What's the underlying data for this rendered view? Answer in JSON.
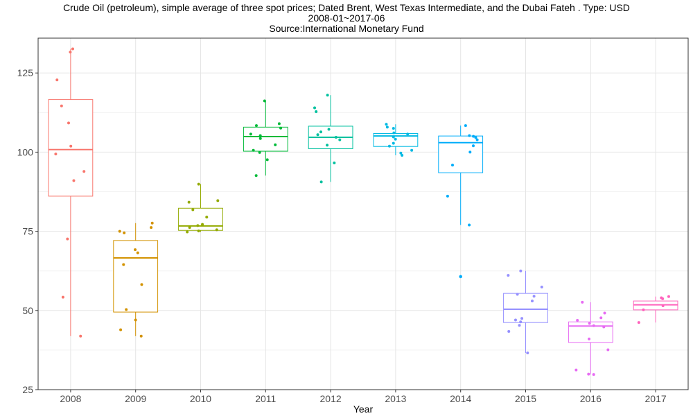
{
  "chart_data": {
    "type": "box",
    "title": "Crude Oil (petroleum), simple average of three spot prices; Dated Brent, West Texas Intermediate, and the Dubai Fateh . Type: USD",
    "subtitle": "2008-01~2017-06",
    "source": "Source:International Monetary Fund",
    "xlabel": "Year",
    "ylabel": "",
    "ylim": [
      25,
      136
    ],
    "yticks": [
      25,
      50,
      75,
      100,
      125
    ],
    "grid": true,
    "legend": "none",
    "categories": [
      "2008",
      "2009",
      "2010",
      "2011",
      "2012",
      "2013",
      "2014",
      "2015",
      "2016",
      "2017"
    ],
    "boxes": [
      {
        "year": "2008",
        "color": "#F8766D",
        "whisker_low": 41.9,
        "q1": 86.1,
        "median": 100.8,
        "q3": 116.6,
        "whisker_high": 132.6,
        "points": [
          131.6,
          132.6,
          122.8,
          114.6,
          109.2,
          101.9,
          99.4,
          93.9,
          91.0,
          72.6,
          54.2,
          41.9
        ],
        "outliers": []
      },
      {
        "year": "2009",
        "color": "#D39200",
        "whisker_low": 41.9,
        "q1": 49.5,
        "median": 66.6,
        "q3": 72.1,
        "whisker_high": 77.6,
        "points": [
          41.9,
          43.9,
          47.0,
          50.3,
          58.2,
          64.5,
          68.2,
          69.2,
          74.5,
          75.0,
          76.2,
          77.6
        ],
        "outliers": []
      },
      {
        "year": "2010",
        "color": "#93AA00",
        "whisker_low": 74.8,
        "q1": 75.3,
        "median": 76.7,
        "q3": 82.3,
        "whisker_high": 89.9,
        "points": [
          74.8,
          75.1,
          75.5,
          76.2,
          76.8,
          77.2,
          79.5,
          81.8,
          84.2,
          84.7,
          89.9
        ],
        "outliers": []
      },
      {
        "year": "2011",
        "color": "#00BA38",
        "whisker_low": 92.6,
        "q1": 100.3,
        "median": 104.9,
        "q3": 107.9,
        "whisker_high": 116.2,
        "points": [
          92.6,
          97.6,
          99.9,
          100.6,
          102.3,
          104.3,
          105.2,
          105.7,
          107.6,
          108.4,
          109.0,
          116.2
        ],
        "outliers": []
      },
      {
        "year": "2012",
        "color": "#00C19F",
        "whisker_low": 90.6,
        "q1": 101.1,
        "median": 104.7,
        "q3": 108.2,
        "whisker_high": 118.0,
        "points": [
          90.6,
          96.6,
          102.2,
          103.9,
          104.7,
          105.5,
          106.4,
          107.2,
          112.8,
          114.0,
          118.0
        ],
        "outliers": []
      },
      {
        "year": "2013",
        "color": "#00B9E3",
        "whisker_low": 99.0,
        "q1": 101.8,
        "median": 105.1,
        "q3": 105.9,
        "whisker_high": 108.8,
        "points": [
          99.0,
          99.7,
          100.6,
          101.9,
          102.8,
          104.1,
          104.8,
          105.7,
          106.1,
          107.5,
          107.9,
          108.8
        ],
        "outliers": []
      },
      {
        "year": "2014",
        "color": "#00ADFA",
        "whisker_low": 77.0,
        "q1": 93.5,
        "median": 103.0,
        "q3": 105.1,
        "whisker_high": 108.4,
        "points": [
          77.0,
          86.1,
          95.9,
          100.0,
          102.0,
          103.9,
          104.6,
          105.0,
          105.2,
          108.4
        ],
        "outliers": [
          60.7,
          60.7
        ]
      },
      {
        "year": "2015",
        "color": "#9590FF",
        "whisker_low": 36.6,
        "q1": 46.2,
        "median": 50.4,
        "q3": 55.4,
        "whisker_high": 62.5,
        "points": [
          36.6,
          43.4,
          45.3,
          46.4,
          47.0,
          47.5,
          53.0,
          54.5,
          55.1,
          57.4,
          61.1,
          62.5
        ],
        "outliers": []
      },
      {
        "year": "2016",
        "color": "#E76BF3",
        "whisker_low": 29.8,
        "q1": 39.9,
        "median": 45.1,
        "q3": 46.4,
        "whisker_high": 52.6,
        "points": [
          29.8,
          29.9,
          31.2,
          37.6,
          41.0,
          44.8,
          45.2,
          45.9,
          46.9,
          47.7,
          49.2,
          52.6
        ],
        "outliers": []
      },
      {
        "year": "2017",
        "color": "#FF62BC",
        "whisker_low": 46.2,
        "q1": 50.2,
        "median": 51.8,
        "q3": 53.0,
        "whisker_high": 54.4,
        "points": [
          46.2,
          50.2,
          51.5,
          53.7,
          54.0,
          54.4
        ],
        "outliers": []
      }
    ]
  }
}
